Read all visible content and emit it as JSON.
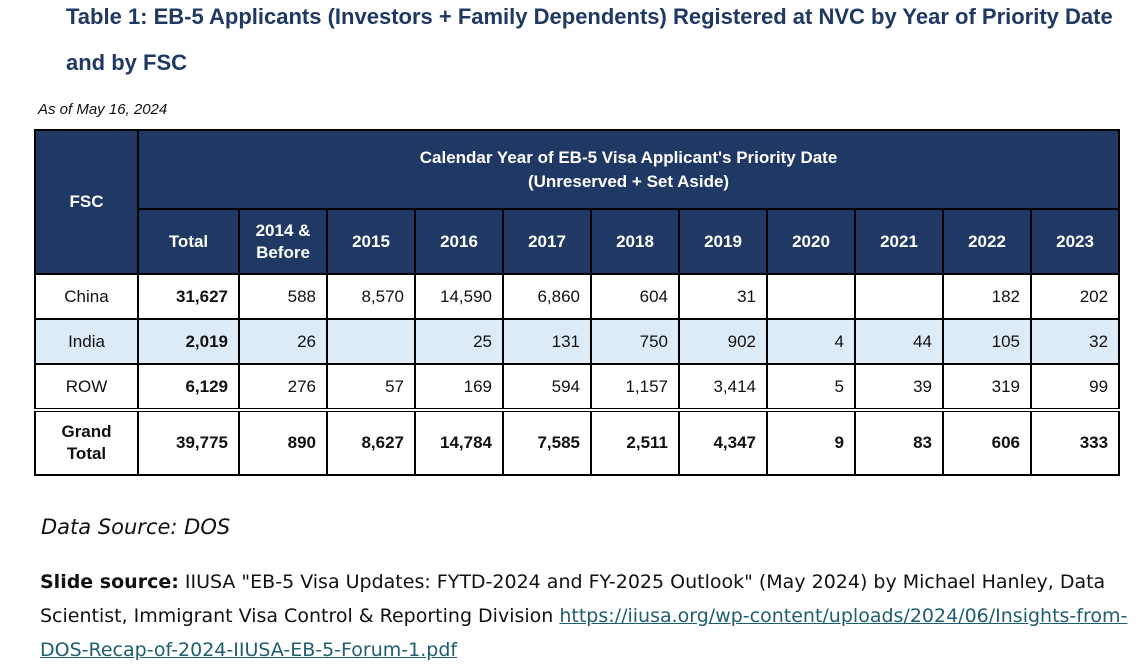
{
  "title": "Table 1: EB-5 Applicants (Investors + Family Dependents) Registered at NVC by Year of Priority Date and by FSC",
  "as_of": "As of May 16, 2024",
  "table": {
    "fsc_header": "FSC",
    "group_header_line1": "Calendar Year of EB-5 Visa Applicant's Priority Date",
    "group_header_line2": "(Unreserved + Set Aside)",
    "columns": [
      "Total",
      "2014 &",
      "Before",
      "2015",
      "2016",
      "2017",
      "2018",
      "2019",
      "2020",
      "2021",
      "2022",
      "2023"
    ],
    "rows": [
      {
        "fsc": "China",
        "cells": [
          "31,627",
          "588",
          "8,570",
          "14,590",
          "6,860",
          "604",
          "31",
          "",
          "",
          "182",
          "202"
        ]
      },
      {
        "fsc": "India",
        "cells": [
          "2,019",
          "26",
          "",
          "25",
          "131",
          "750",
          "902",
          "4",
          "44",
          "105",
          "32"
        ]
      },
      {
        "fsc": "ROW",
        "cells": [
          "6,129",
          "276",
          "57",
          "169",
          "594",
          "1,157",
          "3,414",
          "5",
          "39",
          "319",
          "99"
        ]
      }
    ],
    "grand_total": {
      "label_line1": "Grand",
      "label_line2": "Total",
      "cells": [
        "39,775",
        "890",
        "8,627",
        "14,784",
        "7,585",
        "2,511",
        "4,347",
        "9",
        "83",
        "606",
        "333"
      ]
    }
  },
  "data_source": "Data Source: DOS",
  "slide_source": {
    "label": "Slide source:",
    "text": " IIUSA \"EB-5 Visa Updates: FYTD-2024 and FY-2025 Outlook\" (May 2024) by Michael Hanley, Data Scientist, Immigrant Visa Control & Reporting Division  ",
    "link": "https://iiusa.org/wp-content/uploads/2024/06/Insights-from-DOS-Recap-of-2024-IIUSA-EB-5-Forum-1.pdf"
  }
}
